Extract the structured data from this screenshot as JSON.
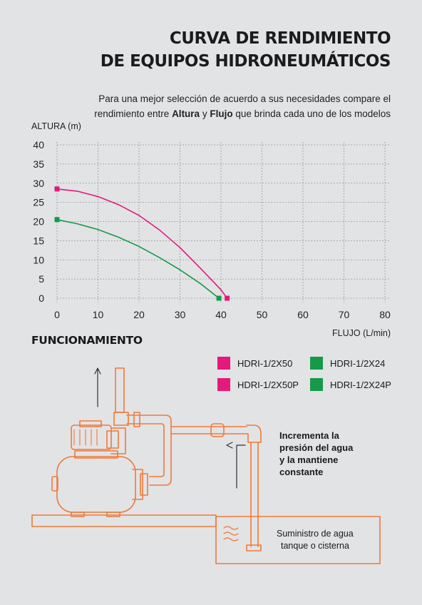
{
  "title": {
    "line1": "CURVA DE RENDIMIENTO",
    "line2": "DE EQUIPOS HIDRONEUMÁTICOS"
  },
  "intro": {
    "line1": "Para una mejor selección de acuerdo a sus necesidades compare el",
    "line2_pre": "rendimiento entre ",
    "bold1": "Altura",
    "line2_mid": " y ",
    "bold2": "Flujo",
    "line2_post": " que brinda cada uno de los modelos"
  },
  "chart_data": {
    "type": "line",
    "ylabel": "ALTURA  (m)",
    "xlabel": "FLUJO (L/min)",
    "xlim": [
      0,
      80
    ],
    "ylim": [
      0,
      40
    ],
    "x_ticks": [
      0,
      10,
      20,
      30,
      40,
      50,
      60,
      70,
      80
    ],
    "y_ticks": [
      0,
      5,
      10,
      15,
      20,
      25,
      30,
      35,
      40
    ],
    "grid": true,
    "series": [
      {
        "color": "#e4197b",
        "x": [
          0,
          5,
          10,
          15,
          20,
          25,
          30,
          35,
          40,
          41.5
        ],
        "y": [
          28.5,
          27.9,
          26.5,
          24.4,
          21.6,
          17.8,
          13.2,
          7.8,
          2.2,
          0
        ]
      },
      {
        "color": "#159a4a",
        "x": [
          0,
          5,
          10,
          15,
          20,
          25,
          30,
          35,
          39.5
        ],
        "y": [
          20.5,
          19.4,
          17.9,
          15.9,
          13.5,
          10.6,
          7.4,
          3.8,
          0
        ]
      }
    ]
  },
  "section": {
    "title": "FUNCIONAMIENTO"
  },
  "legend": [
    {
      "label": "HDRI-1/2X50",
      "color": "#e4197b"
    },
    {
      "label": "HDRI-1/2X24",
      "color": "#159a4a"
    },
    {
      "label": "HDRI-1/2X50P",
      "color": "#e4197b"
    },
    {
      "label": "HDRI-1/2X24P",
      "color": "#159a4a"
    }
  ],
  "note": {
    "line1": "Incrementa la",
    "line2": "presión del agua",
    "line3": "y la mantiene",
    "line4": "constante"
  },
  "supply": {
    "line1": "Suministro de agua",
    "line2": "tanque o cisterna"
  },
  "colors": {
    "outline": "#ee7a3a",
    "background": "#e2e3e5"
  }
}
